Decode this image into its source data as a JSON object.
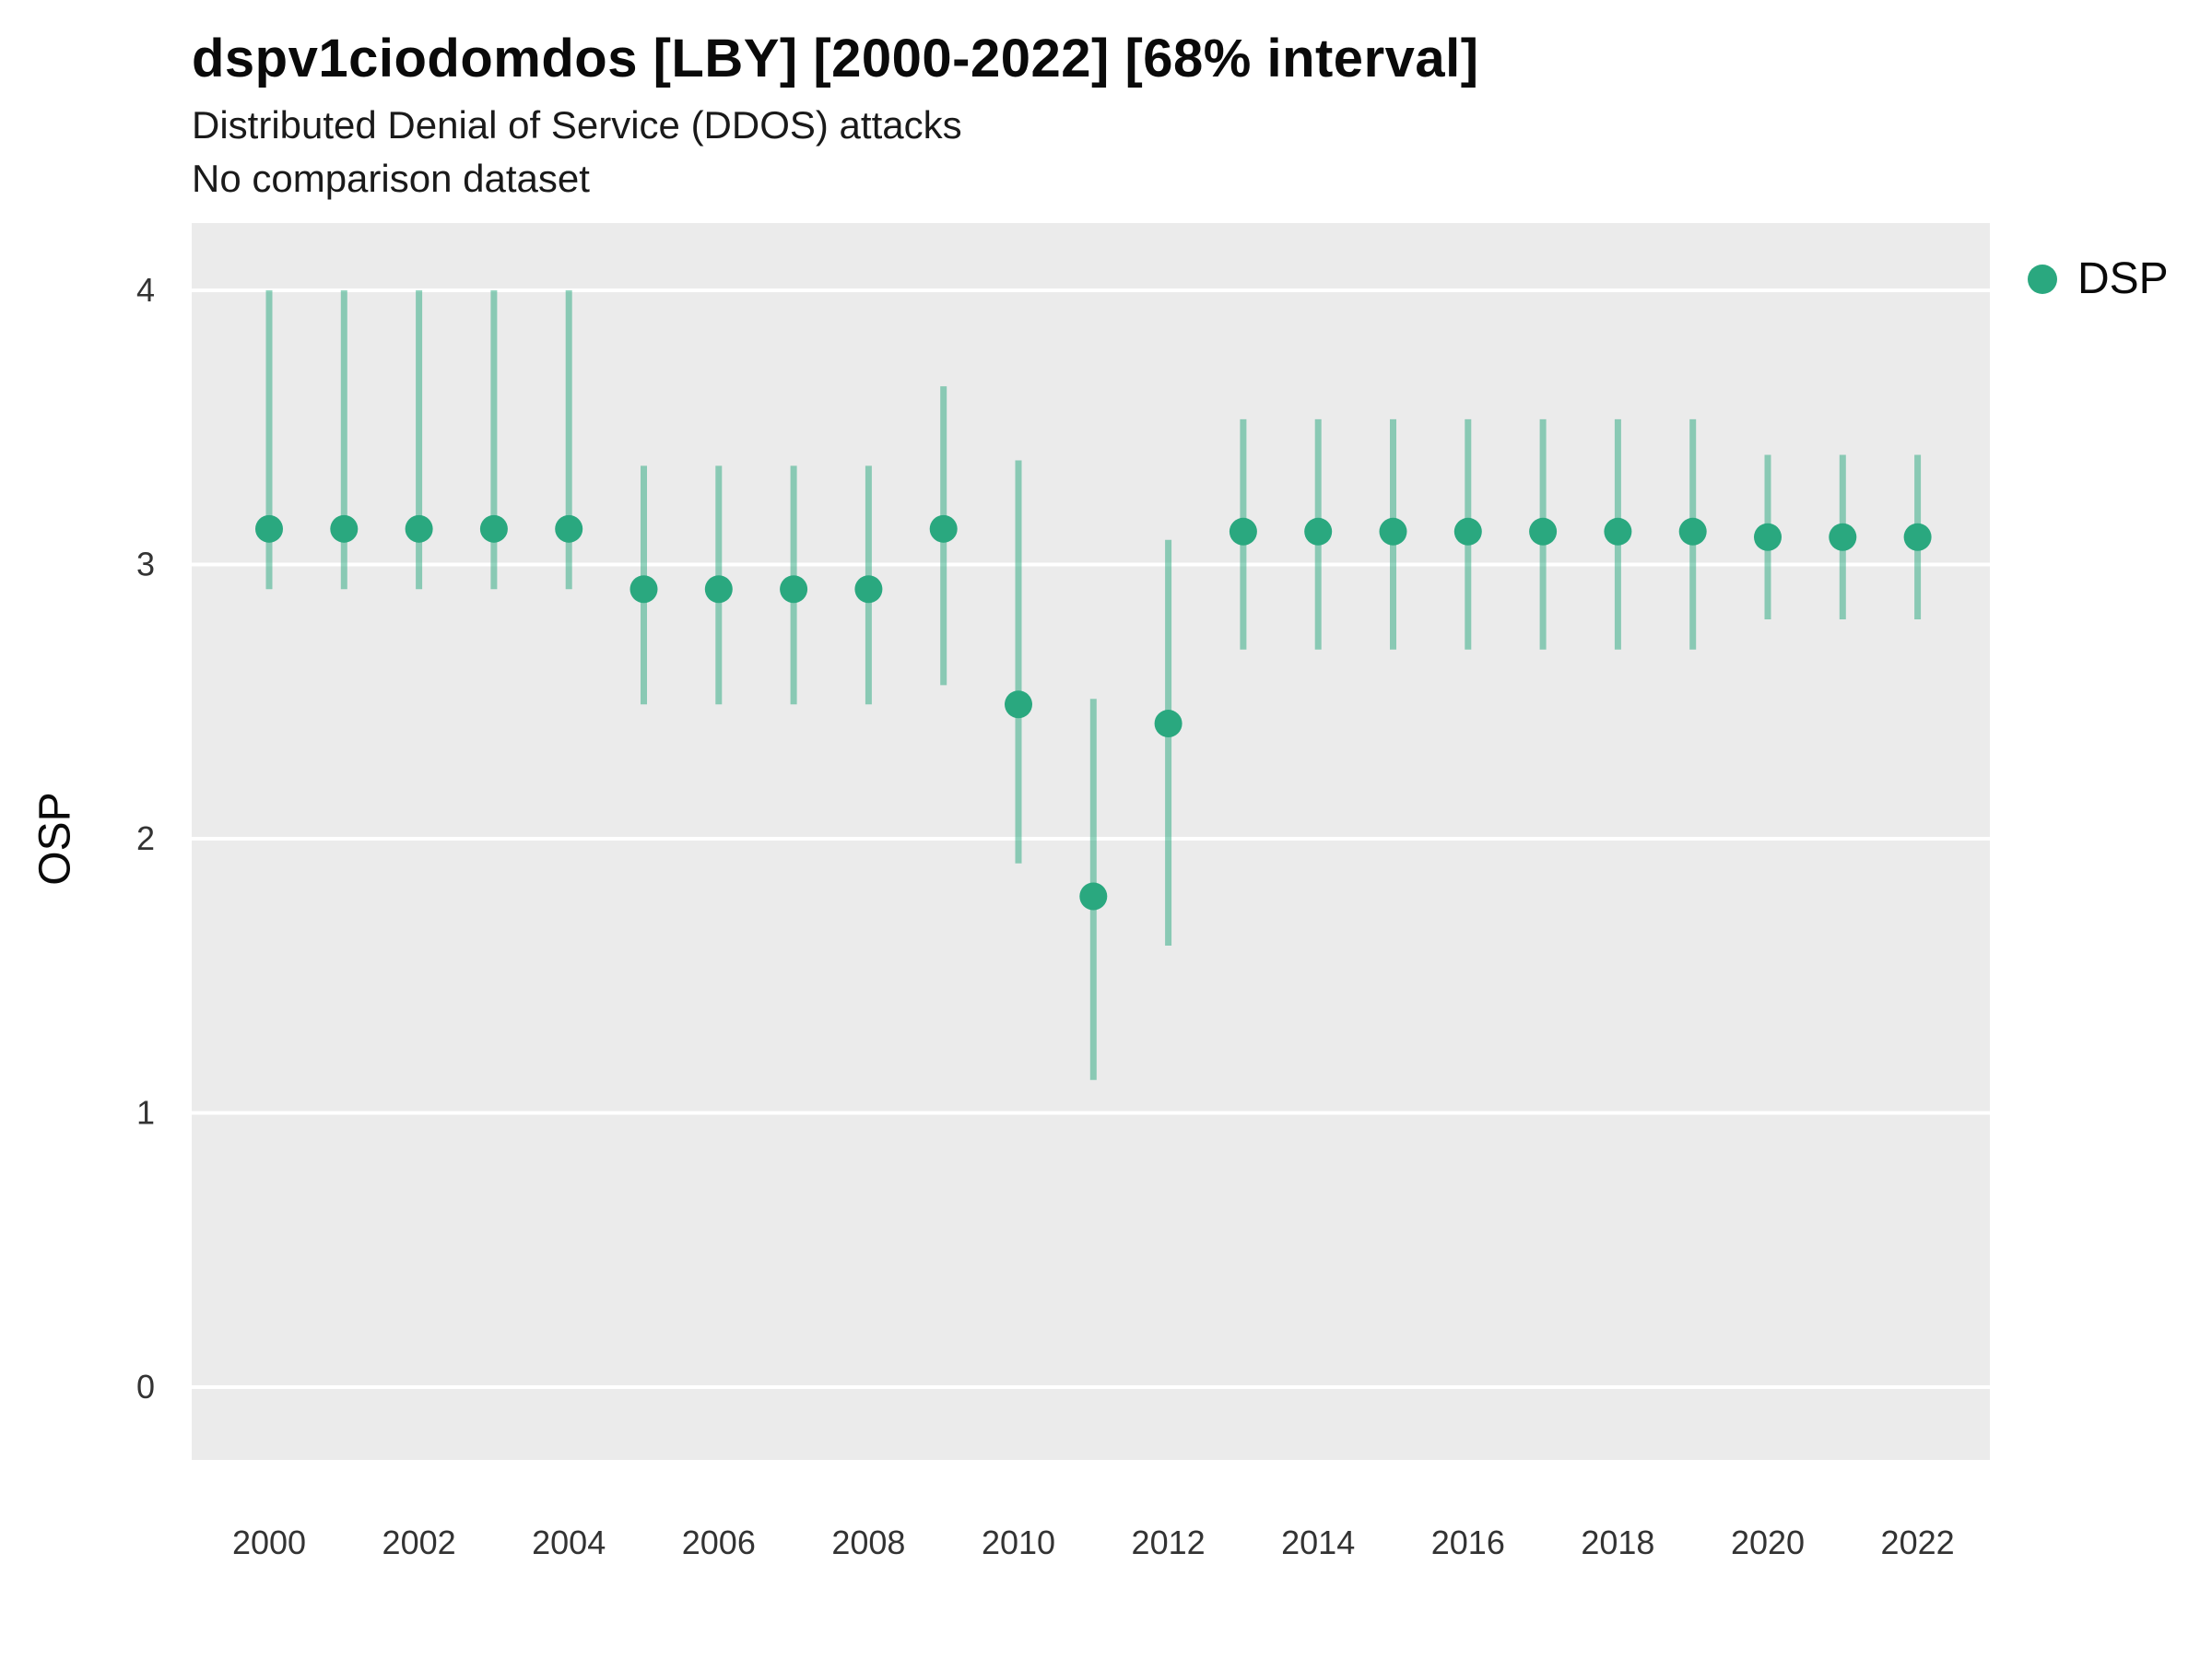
{
  "chart_data": {
    "type": "scatter",
    "variant": "pointrange",
    "title": "dspv1ciodomdos [LBY] [2000-2022] [68% interval]",
    "subtitle": "Distributed Denial of Service (DDOS) attacks",
    "note": "No comparison dataset",
    "xlabel": "",
    "ylabel": "OSP",
    "legend": {
      "label": "DSP",
      "position": "right"
    },
    "x_tick_labels": [
      "2000",
      "2002",
      "2004",
      "2006",
      "2008",
      "2010",
      "2012",
      "2014",
      "2016",
      "2018",
      "2020",
      "2022"
    ],
    "y_ticks": [
      0,
      1,
      2,
      3,
      4
    ],
    "ylim": [
      -0.27,
      4.25
    ],
    "grid": "major-horizontal-white-on-gray",
    "colors": {
      "point": "#2aa87f",
      "interval": "#2aa87f",
      "interval_opacity": 0.5,
      "panel_background": "#EBEBEB",
      "gridline": "#FFFFFF",
      "tick_text": "#333333"
    },
    "series": [
      {
        "name": "DSP",
        "x": [
          2000,
          2001,
          2002,
          2003,
          2004,
          2005,
          2006,
          2007,
          2008,
          2009,
          2010,
          2011,
          2012,
          2013,
          2014,
          2015,
          2016,
          2017,
          2018,
          2019,
          2020,
          2021,
          2022
        ],
        "y": [
          3.13,
          3.13,
          3.13,
          3.13,
          3.13,
          2.91,
          2.91,
          2.91,
          2.91,
          3.13,
          2.49,
          1.79,
          2.42,
          3.12,
          3.12,
          3.12,
          3.12,
          3.12,
          3.12,
          3.12,
          3.1,
          3.1,
          3.1
        ],
        "lower": [
          2.91,
          2.91,
          2.91,
          2.91,
          2.91,
          2.49,
          2.49,
          2.49,
          2.49,
          2.56,
          1.91,
          1.12,
          1.61,
          2.69,
          2.69,
          2.69,
          2.69,
          2.69,
          2.69,
          2.69,
          2.8,
          2.8,
          2.8
        ],
        "upper": [
          4.0,
          4.0,
          4.0,
          4.0,
          4.0,
          3.36,
          3.36,
          3.36,
          3.36,
          3.65,
          3.38,
          2.51,
          3.09,
          3.53,
          3.53,
          3.53,
          3.53,
          3.53,
          3.53,
          3.53,
          3.4,
          3.4,
          3.4
        ]
      }
    ]
  },
  "layout_labels": {
    "interval_note": "68% interval"
  }
}
